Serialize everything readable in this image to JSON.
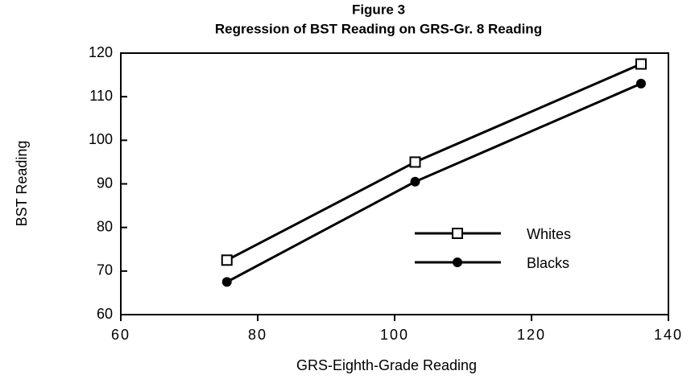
{
  "chart_data": {
    "type": "line",
    "title": "Figure 3",
    "subtitle": "Regression of BST Reading on GRS-Gr. 8 Reading",
    "xlabel": "GRS-Eighth-Grade Reading",
    "ylabel": "BST Reading",
    "x": [
      75.5,
      103,
      136
    ],
    "series": [
      {
        "name": "Whites",
        "color": "#000000",
        "marker": "square",
        "values": [
          72.5,
          95,
          117.5
        ]
      },
      {
        "name": "Blacks",
        "color": "#000000",
        "marker": "circle",
        "values": [
          67.5,
          90.5,
          113
        ]
      }
    ],
    "xlim": [
      60,
      140
    ],
    "xticks": [
      60,
      80,
      100,
      120,
      140
    ],
    "ylim": [
      60,
      120
    ],
    "yticks": [
      60,
      70,
      80,
      90,
      100,
      110,
      120
    ],
    "grid": false,
    "legend": "center right"
  }
}
